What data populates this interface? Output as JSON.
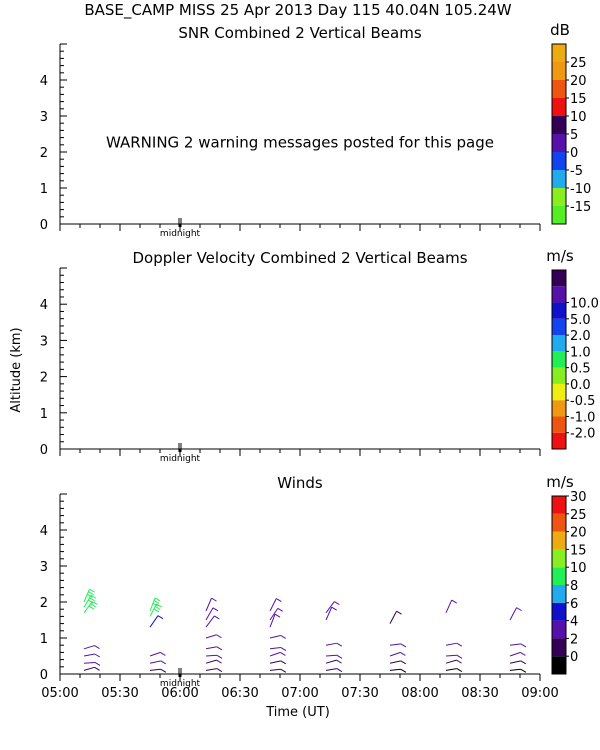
{
  "header": "BASE_CAMP MISS  25 Apr 2013 Day 115 40.04N 105.24W",
  "y_axis_label": "Altitude (km)",
  "x_axis_label": "Time (UT)",
  "midnight_label": "midnight",
  "x_ticks": [
    "05:00",
    "05:30",
    "06:00",
    "06:30",
    "07:00",
    "07:30",
    "08:00",
    "08:30",
    "09:00"
  ],
  "y_ticks": [
    "0",
    "1",
    "2",
    "3",
    "4"
  ],
  "panels": [
    {
      "title": "SNR Combined 2 Vertical Beams",
      "unit": "dB",
      "warning": "WARNING  2 warning messages posted for this page",
      "colorbar": {
        "labels": [
          "-15",
          "-10",
          "-5",
          "0",
          "5",
          "10",
          "15",
          "20",
          "25"
        ],
        "colors": [
          "#55ee22",
          "#88ee22",
          "#22aaee",
          "#1144ee",
          "#5511aa",
          "#330055",
          "#ee1111",
          "#ee5511",
          "#ee9911",
          "#eeaa11"
        ]
      }
    },
    {
      "title": "Doppler Velocity Combined 2 Vertical Beams",
      "unit": "m/s",
      "colorbar": {
        "labels": [
          "-2.0",
          "-1.0",
          "-0.5",
          "0.0",
          "0.5",
          "1.0",
          "2.0",
          "5.0",
          "10.0"
        ],
        "colors": [
          "#ee1111",
          "#ee5511",
          "#ee9911",
          "#eeee11",
          "#88ee22",
          "#22ee55",
          "#22aaee",
          "#1144ee",
          "#1111cc",
          "#5511aa",
          "#330055"
        ]
      }
    },
    {
      "title": "Winds",
      "unit": "m/s",
      "colorbar": {
        "labels": [
          "0",
          "2",
          "4",
          "6",
          "8",
          "10",
          "15",
          "20",
          "25",
          "30"
        ],
        "colors": [
          "#000000",
          "#330055",
          "#5511aa",
          "#1111cc",
          "#22aaee",
          "#22ee55",
          "#88ee22",
          "#eeaa11",
          "#ee5511",
          "#ee1111"
        ]
      }
    }
  ],
  "chart_data": {
    "type": "scatter",
    "title": "Winds",
    "xlabel": "Time (UT)",
    "ylabel": "Altitude (km)",
    "xlim": [
      "05:00",
      "09:00"
    ],
    "ylim": [
      0,
      5
    ],
    "wind_profiles": [
      {
        "time": "05:12",
        "altitudes": [
          0.1,
          0.3,
          0.5,
          0.7,
          1.7,
          1.85,
          2.0
        ],
        "speeds": [
          3,
          4,
          4,
          4,
          14,
          14,
          14
        ]
      },
      {
        "time": "05:45",
        "altitudes": [
          0.1,
          0.3,
          0.5,
          1.3,
          1.6,
          1.75
        ],
        "speeds": [
          3,
          4,
          4,
          6,
          13,
          13
        ]
      },
      {
        "time": "06:13",
        "altitudes": [
          0.1,
          0.3,
          0.5,
          0.7,
          1.0,
          1.3,
          1.5,
          1.75
        ],
        "speeds": [
          2,
          3,
          4,
          4,
          4,
          4,
          4,
          4
        ]
      },
      {
        "time": "06:45",
        "altitudes": [
          0.1,
          0.3,
          0.5,
          0.7,
          1.0,
          1.3,
          1.5,
          1.75
        ],
        "speeds": [
          2,
          3,
          4,
          4,
          4,
          4,
          4,
          4
        ]
      },
      {
        "time": "07:13",
        "altitudes": [
          0.1,
          0.3,
          0.5,
          0.8,
          1.5,
          1.7
        ],
        "speeds": [
          2,
          3,
          4,
          4,
          4,
          4
        ]
      },
      {
        "time": "07:45",
        "altitudes": [
          0.1,
          0.3,
          0.5,
          0.8,
          1.4
        ],
        "speeds": [
          1,
          3,
          4,
          4,
          3
        ]
      },
      {
        "time": "08:13",
        "altitudes": [
          0.1,
          0.3,
          0.5,
          0.8,
          1.7
        ],
        "speeds": [
          1,
          3,
          4,
          4,
          4
        ]
      },
      {
        "time": "08:45",
        "altitudes": [
          0.1,
          0.3,
          0.5,
          0.8,
          1.5
        ],
        "speeds": [
          1,
          3,
          4,
          4,
          4
        ]
      }
    ]
  }
}
